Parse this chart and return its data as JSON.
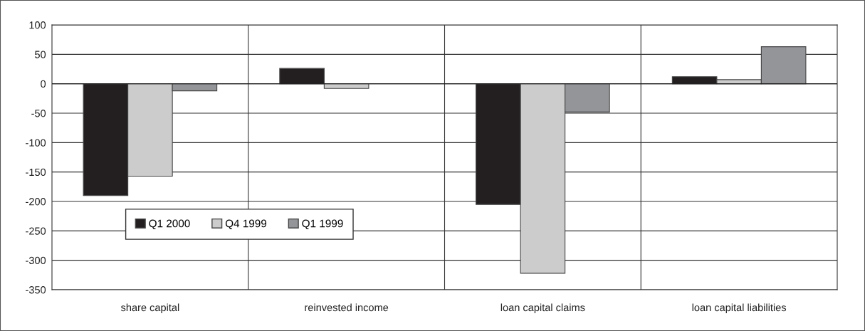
{
  "chart_data": {
    "type": "bar",
    "categories": [
      "share capital",
      "reinvested income",
      "loan capital claims",
      "loan capital liabilities"
    ],
    "series": [
      {
        "name": "Q1 2000",
        "color": "#231f20",
        "values": [
          -190,
          26,
          -205,
          12
        ]
      },
      {
        "name": "Q4 1999",
        "color": "#cccccc",
        "values": [
          -157,
          -8,
          -322,
          7
        ]
      },
      {
        "name": "Q1 1999",
        "color": "#939598",
        "values": [
          -12,
          null,
          -48,
          63
        ]
      }
    ],
    "ylim": [
      -350,
      100
    ],
    "yticks": [
      -350,
      -300,
      -250,
      -200,
      -150,
      -100,
      -50,
      0,
      50,
      100
    ],
    "grid": true,
    "legend": "bottom left"
  }
}
